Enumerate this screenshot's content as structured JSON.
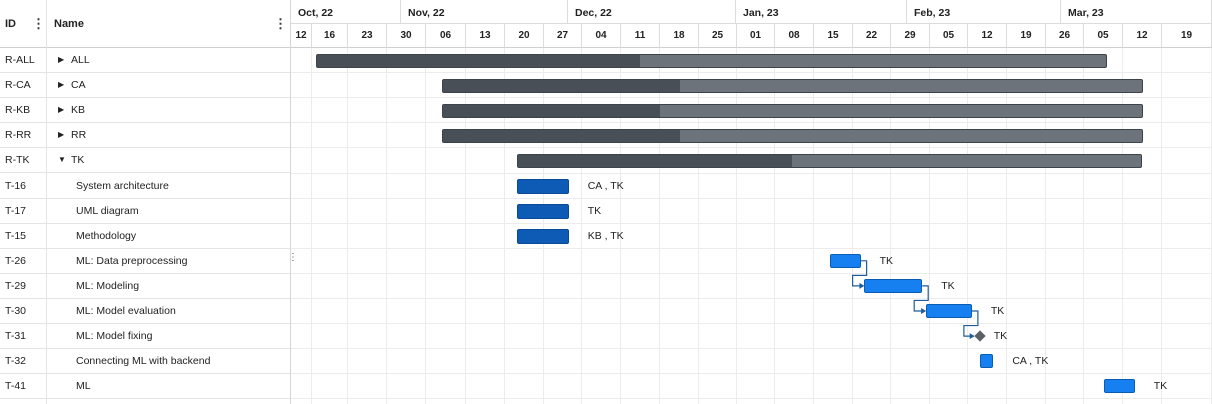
{
  "grid": {
    "headers": {
      "id": "ID",
      "name": "Name",
      "menu_icon": "vertical-dots-icon"
    },
    "rows": [
      {
        "id": "R-ALL",
        "name": "ALL",
        "level": 0,
        "toggle": "collapsed"
      },
      {
        "id": "R-CA",
        "name": "CA",
        "level": 0,
        "toggle": "collapsed"
      },
      {
        "id": "R-KB",
        "name": "KB",
        "level": 0,
        "toggle": "collapsed"
      },
      {
        "id": "R-RR",
        "name": "RR",
        "level": 0,
        "toggle": "collapsed"
      },
      {
        "id": "R-TK",
        "name": "TK",
        "level": 0,
        "toggle": "expanded"
      },
      {
        "id": "T-16",
        "name": "System architecture",
        "level": 1
      },
      {
        "id": "T-17",
        "name": "UML diagram",
        "level": 1
      },
      {
        "id": "T-15",
        "name": "Methodology",
        "level": 1
      },
      {
        "id": "T-26",
        "name": "ML: Data preprocessing",
        "level": 1
      },
      {
        "id": "T-29",
        "name": "ML: Modeling",
        "level": 1
      },
      {
        "id": "T-30",
        "name": "ML: Model evaluation",
        "level": 1
      },
      {
        "id": "T-31",
        "name": "ML: Model fixing",
        "level": 1
      },
      {
        "id": "T-32",
        "name": "Connecting ML with backend",
        "level": 1
      },
      {
        "id": "T-41",
        "name": "ML",
        "level": 1
      }
    ]
  },
  "timeline": {
    "months": [
      "Oct, 22",
      "Nov, 22",
      "Dec, 22",
      "Jan, 23",
      "Feb, 23",
      "Mar, 23"
    ],
    "weeks": [
      "12",
      "16",
      "23",
      "30",
      "06",
      "13",
      "20",
      "27",
      "04",
      "11",
      "18",
      "25",
      "01",
      "08",
      "15",
      "22",
      "29",
      "05",
      "12",
      "19",
      "26",
      "05",
      "12",
      "19"
    ]
  },
  "bars": [
    {
      "row": 0,
      "kind": "summary",
      "start": 1.1,
      "end": 21.6,
      "progress": 0.41
    },
    {
      "row": 1,
      "kind": "summary",
      "start": 4.4,
      "end": 22.5,
      "progress": 0.34
    },
    {
      "row": 2,
      "kind": "summary",
      "start": 4.4,
      "end": 22.5,
      "progress": 0.31
    },
    {
      "row": 3,
      "kind": "summary",
      "start": 4.4,
      "end": 22.5,
      "progress": 0.34
    },
    {
      "row": 4,
      "kind": "summary",
      "start": 6.3,
      "end": 22.5,
      "progress": 0.44
    },
    {
      "row": 5,
      "kind": "task",
      "start": 6.3,
      "end": 7.65,
      "resource": "CA , TK"
    },
    {
      "row": 6,
      "kind": "task",
      "start": 6.3,
      "end": 7.65,
      "resource": "TK"
    },
    {
      "row": 7,
      "kind": "task",
      "start": 6.3,
      "end": 7.65,
      "resource": "KB , TK"
    },
    {
      "row": 8,
      "kind": "lt",
      "start": 14.4,
      "end": 15.2,
      "resource": "TK"
    },
    {
      "row": 9,
      "kind": "lt",
      "start": 15.3,
      "end": 16.8,
      "resource": "TK"
    },
    {
      "row": 10,
      "kind": "lt",
      "start": 16.9,
      "end": 18.1,
      "resource": "TK"
    },
    {
      "row": 11,
      "kind": "milestone",
      "start": 18.3,
      "resource": "TK"
    },
    {
      "row": 12,
      "kind": "lt",
      "start": 18.3,
      "end": 18.65,
      "resource": "CA , TK"
    },
    {
      "row": 13,
      "kind": "lt",
      "start": 21.5,
      "end": 22.3,
      "resource": "TK"
    }
  ],
  "links": [
    [
      8,
      9
    ],
    [
      9,
      10
    ],
    [
      10,
      11
    ]
  ],
  "colors": {
    "summary_fill": "#6c737a",
    "summary_progress": "#484f57",
    "task_dark": "#0d5bb5",
    "task_light": "#1680f0"
  }
}
